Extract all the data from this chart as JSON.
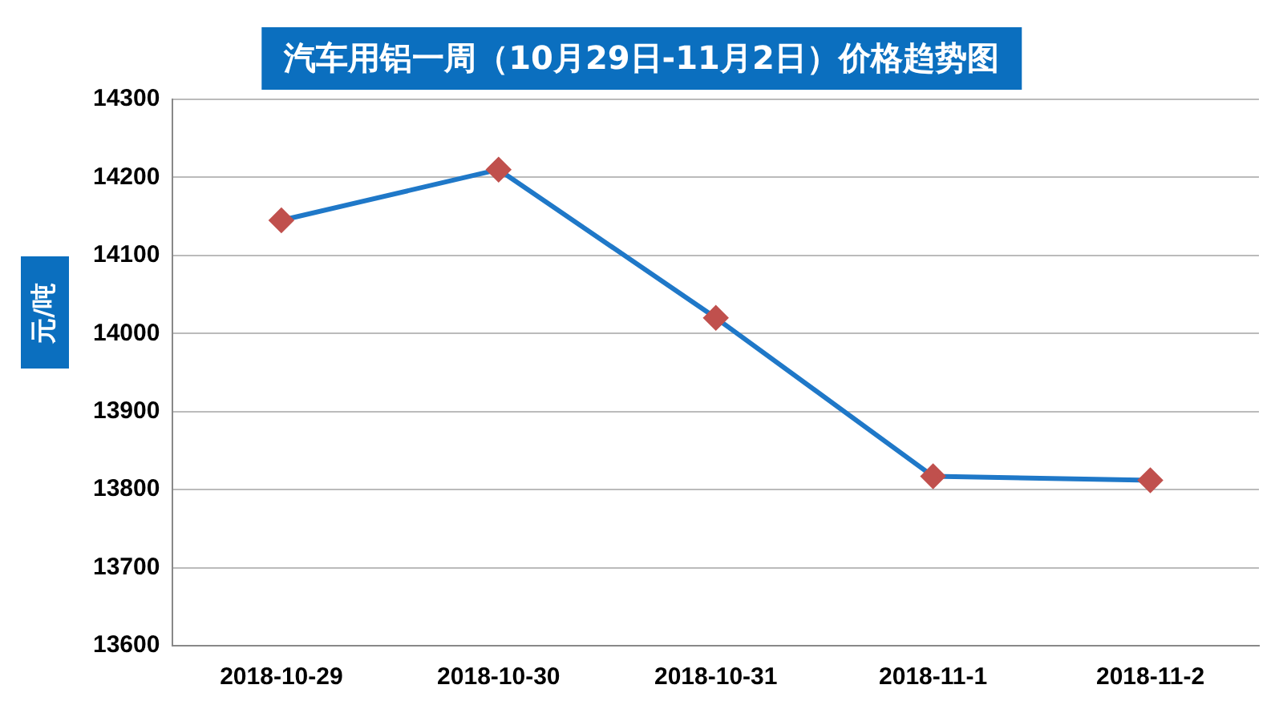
{
  "chart_data": {
    "type": "line",
    "title": "汽车用铝一周（10月29日-11月2日）价格趋势图",
    "ylabel": "元/吨",
    "categories": [
      "2018-10-29",
      "2018-10-30",
      "2018-10-31",
      "2018-11-1",
      "2018-11-2"
    ],
    "series": [
      {
        "color": "#1f78c8",
        "values": [
          14145,
          14210,
          14020,
          13817,
          13812
        ],
        "colors": [
          "#c0504d",
          "#c0504d",
          "#c0504d",
          "#c0504d",
          "#c0504d"
        ]
      }
    ],
    "ylim": [
      13600,
      14300
    ],
    "yticks": [
      13600,
      13700,
      13800,
      13900,
      14000,
      14100,
      14200,
      14300
    ],
    "grid": "y",
    "legend": false,
    "marker": "diamond",
    "line_style": "solid"
  }
}
